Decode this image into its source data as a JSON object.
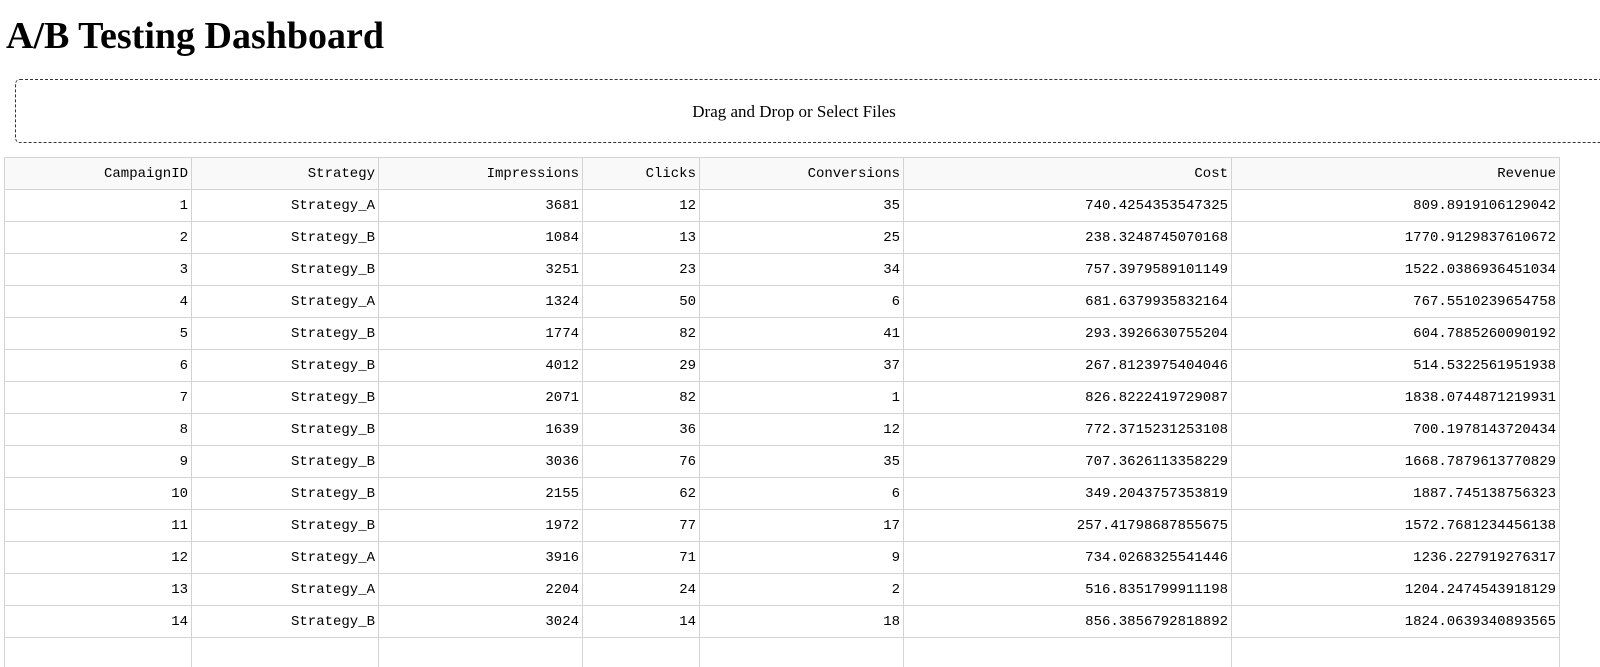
{
  "page": {
    "title": "A/B Testing Dashboard"
  },
  "upload": {
    "label": "Drag and Drop or Select Files"
  },
  "table": {
    "columns": [
      "CampaignID",
      "Strategy",
      "Impressions",
      "Clicks",
      "Conversions",
      "Cost",
      "Revenue"
    ],
    "rows": [
      [
        "1",
        "Strategy_A",
        "3681",
        "12",
        "35",
        "740.4254353547325",
        "809.8919106129042"
      ],
      [
        "2",
        "Strategy_B",
        "1084",
        "13",
        "25",
        "238.3248745070168",
        "1770.9129837610672"
      ],
      [
        "3",
        "Strategy_B",
        "3251",
        "23",
        "34",
        "757.3979589101149",
        "1522.0386936451034"
      ],
      [
        "4",
        "Strategy_A",
        "1324",
        "50",
        "6",
        "681.6379935832164",
        "767.5510239654758"
      ],
      [
        "5",
        "Strategy_B",
        "1774",
        "82",
        "41",
        "293.3926630755204",
        "604.7885260090192"
      ],
      [
        "6",
        "Strategy_B",
        "4012",
        "29",
        "37",
        "267.8123975404046",
        "514.5322561951938"
      ],
      [
        "7",
        "Strategy_B",
        "2071",
        "82",
        "1",
        "826.8222419729087",
        "1838.0744871219931"
      ],
      [
        "8",
        "Strategy_B",
        "1639",
        "36",
        "12",
        "772.3715231253108",
        "700.1978143720434"
      ],
      [
        "9",
        "Strategy_B",
        "3036",
        "76",
        "35",
        "707.3626113358229",
        "1668.7879613770829"
      ],
      [
        "10",
        "Strategy_B",
        "2155",
        "62",
        "6",
        "349.2043757353819",
        "1887.745138756323"
      ],
      [
        "11",
        "Strategy_B",
        "1972",
        "77",
        "17",
        "257.41798687855675",
        "1572.7681234456138"
      ],
      [
        "12",
        "Strategy_A",
        "3916",
        "71",
        "9",
        "734.0268325541446",
        "1236.227919276317"
      ],
      [
        "13",
        "Strategy_A",
        "2204",
        "24",
        "2",
        "516.8351799911198",
        "1204.2474543918129"
      ],
      [
        "14",
        "Strategy_B",
        "3024",
        "14",
        "18",
        "856.3856792818892",
        "1824.0639340893565"
      ],
      [
        "",
        "",
        "",
        "",
        "",
        "",
        ""
      ]
    ]
  }
}
